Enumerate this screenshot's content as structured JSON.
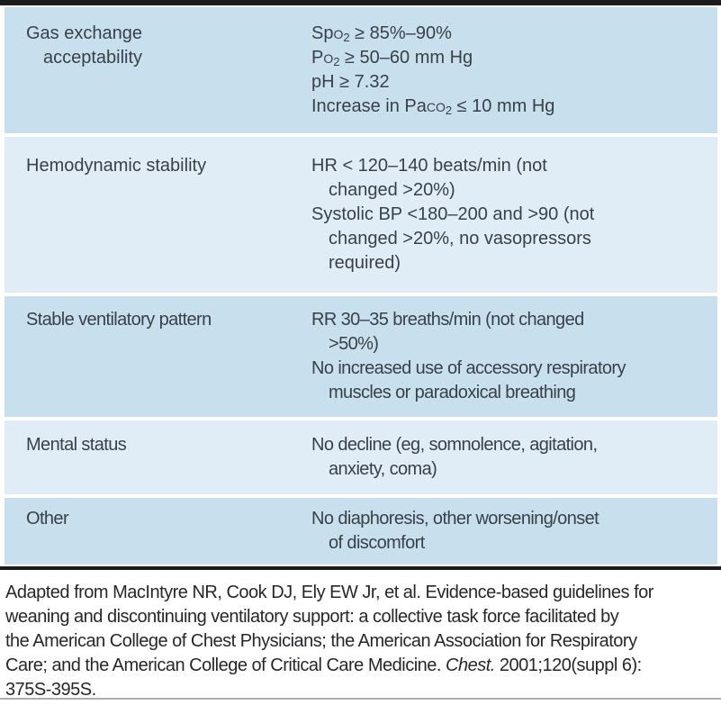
{
  "table": {
    "rows": [
      {
        "label_lines": [
          "Gas exchange",
          "acceptability"
        ],
        "values": [
          {
            "pre": "Sp",
            "sc": "o",
            "sub": "2",
            "post": " ≥ 85%–90%"
          },
          {
            "pre": "P",
            "sc": "o",
            "sub": "2",
            "post": " ≥ 50–60 mm Hg"
          },
          {
            "pre": "pH ≥ 7.32"
          },
          {
            "pre": "Increase in Pa",
            "sc": "co",
            "sub": "2",
            "post": " ≤ 10 mm Hg"
          }
        ]
      },
      {
        "label_lines": [
          "Hemodynamic stability"
        ],
        "values": [
          {
            "pre": "HR < 120–140 beats/min (not"
          },
          {
            "pre": "changed >20%)"
          },
          {
            "pre": "Systolic BP <180–200 and >90 (not"
          },
          {
            "pre": "changed >20%, no vasopressors"
          },
          {
            "pre": "required)"
          }
        ]
      },
      {
        "label_lines": [
          "Stable ventilatory pattern"
        ],
        "values": [
          {
            "pre": "RR 30–35 breaths/min (not changed"
          },
          {
            "pre": ">50%)"
          },
          {
            "pre": "No increased use of accessory respiratory"
          },
          {
            "pre": "muscles or paradoxical breathing"
          }
        ]
      },
      {
        "label_lines": [
          "Mental status"
        ],
        "values": [
          {
            "pre": "No decline (eg, somnolence, agitation,"
          },
          {
            "pre": "anxiety, coma)"
          }
        ]
      },
      {
        "label_lines": [
          "Other"
        ],
        "values": [
          {
            "pre": "No diaphoresis, other worsening/onset"
          },
          {
            "pre": "of discomfort"
          }
        ]
      }
    ]
  },
  "footnote": {
    "lines": [
      {
        "pre": "Adapted from MacIntyre NR, Cook DJ, Ely EW Jr, et al. Evidence-based guidelines for"
      },
      {
        "pre": "weaning and discontinuing ventilatory support: a collective task force facilitated by"
      },
      {
        "pre": "the American College of Chest Physicians; the American Association for Respiratory"
      },
      {
        "pre": "Care; and the American College of Critical Care Medicine. ",
        "journal": "Chest.",
        "post": " 2001;120(suppl 6):"
      },
      {
        "pre": "375S-395S."
      }
    ]
  },
  "colors": {
    "row_shade_dark": "#c8e0ee",
    "row_shade_light": "#e1edf6",
    "rule_black": "#1b1b1b",
    "rule_gray": "#aeaeae",
    "table_text": "#3a4048",
    "footnote_text": "#27272b"
  }
}
